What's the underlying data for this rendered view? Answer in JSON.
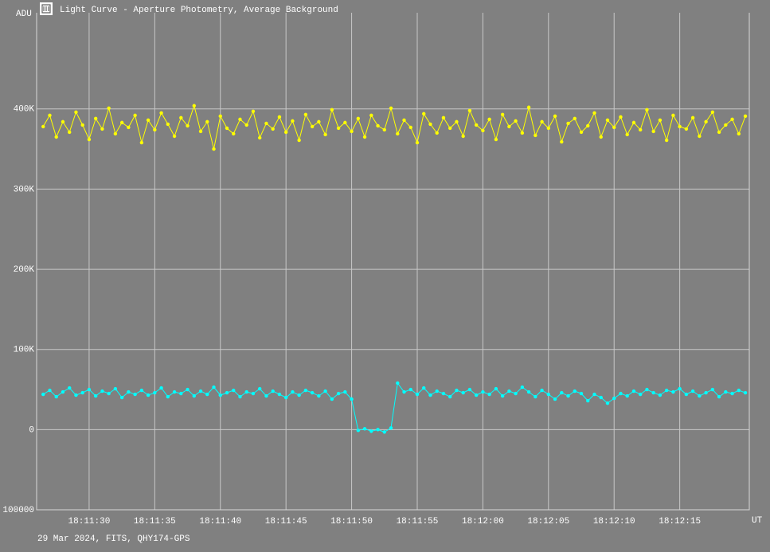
{
  "chart_data": {
    "type": "line",
    "title": "Light Curve - Aperture Photometry, Average Background",
    "ylabel": "ADU",
    "xlabel": "UT",
    "footnote": "29 Mar 2024, FITS, QHY174-GPS",
    "grid": true,
    "xlim": [
      65486,
      65540.3
    ],
    "ylim": [
      -100000,
      520000
    ],
    "xticks": [
      {
        "value": 65490,
        "label": "18:11:30"
      },
      {
        "value": 65495,
        "label": "18:11:35"
      },
      {
        "value": 65500,
        "label": "18:11:40"
      },
      {
        "value": 65505,
        "label": "18:11:45"
      },
      {
        "value": 65510,
        "label": "18:11:50"
      },
      {
        "value": 65515,
        "label": "18:11:55"
      },
      {
        "value": 65520,
        "label": "18:12:00"
      },
      {
        "value": 65525,
        "label": "18:12:05"
      },
      {
        "value": 65530,
        "label": "18:12:10"
      },
      {
        "value": 65535,
        "label": "18:12:15"
      }
    ],
    "yticks": [
      {
        "value": -100000,
        "label": "100000"
      },
      0,
      {
        "value": 100000,
        "label": "100K"
      },
      {
        "value": 200000,
        "label": "200K"
      },
      {
        "value": 300000,
        "label": "300K"
      },
      {
        "value": 400000,
        "label": "400K"
      }
    ],
    "x": [
      65486.5,
      65487,
      65487.5,
      65488,
      65488.5,
      65489,
      65489.5,
      65490,
      65490.5,
      65491,
      65491.5,
      65492,
      65492.5,
      65493,
      65493.5,
      65494,
      65494.5,
      65495,
      65495.5,
      65496,
      65496.5,
      65497,
      65497.5,
      65498,
      65498.5,
      65499,
      65499.5,
      65500,
      65500.5,
      65501,
      65501.5,
      65502,
      65502.5,
      65503,
      65503.5,
      65504,
      65504.5,
      65505,
      65505.5,
      65506,
      65506.5,
      65507,
      65507.5,
      65508,
      65508.5,
      65509,
      65509.5,
      65510,
      65510.5,
      65511,
      65511.5,
      65512,
      65512.5,
      65513,
      65513.5,
      65514,
      65514.5,
      65515,
      65515.5,
      65516,
      65516.5,
      65517,
      65517.5,
      65518,
      65518.5,
      65519,
      65519.5,
      65520,
      65520.5,
      65521,
      65521.5,
      65522,
      65522.5,
      65523,
      65523.5,
      65524,
      65524.5,
      65525,
      65525.5,
      65526,
      65526.5,
      65527,
      65527.5,
      65528,
      65528.5,
      65529,
      65529.5,
      65530,
      65530.5,
      65531,
      65531.5,
      65532,
      65532.5,
      65533,
      65533.5,
      65534,
      65534.5,
      65535,
      65535.5,
      65536,
      65536.5,
      65537,
      65537.5,
      65538,
      65538.5,
      65539,
      65539.5,
      65540
    ],
    "series": [
      {
        "color": "#ffff00",
        "values": [
          378000,
          392000,
          365000,
          384000,
          371000,
          396000,
          380000,
          362000,
          388000,
          375000,
          401000,
          369000,
          383000,
          377000,
          392000,
          358000,
          386000,
          374000,
          395000,
          381000,
          366000,
          389000,
          379000,
          404000,
          372000,
          384000,
          350000,
          391000,
          376000,
          369000,
          387000,
          380000,
          397000,
          364000,
          382000,
          375000,
          390000,
          371000,
          385000,
          361000,
          393000,
          378000,
          384000,
          368000,
          399000,
          376000,
          383000,
          372000,
          388000,
          365000,
          392000,
          379000,
          374000,
          401000,
          369000,
          386000,
          377000,
          358000,
          394000,
          381000,
          370000,
          389000,
          376000,
          384000,
          366000,
          398000,
          380000,
          373000,
          387000,
          362000,
          393000,
          378000,
          385000,
          370000,
          402000,
          367000,
          384000,
          376000,
          391000,
          359000,
          382000,
          388000,
          371000,
          379000,
          395000,
          365000,
          386000,
          377000,
          390000,
          368000,
          383000,
          374000,
          399000,
          372000,
          386000,
          361000,
          392000,
          378000,
          375000,
          389000,
          366000,
          384000,
          396000,
          371000,
          380000,
          387000,
          369000,
          391000
        ]
      },
      {
        "color": "#00ffff",
        "values": [
          44000,
          49000,
          41000,
          47000,
          52000,
          43000,
          46000,
          50000,
          42000,
          48000,
          45000,
          51000,
          40000,
          47000,
          44000,
          49000,
          43000,
          46000,
          52000,
          41000,
          47000,
          45000,
          50000,
          42000,
          48000,
          44000,
          53000,
          43000,
          46000,
          49000,
          41000,
          47000,
          45000,
          51000,
          42000,
          48000,
          44000,
          40000,
          47000,
          43000,
          49000,
          46000,
          42000,
          48000,
          38000,
          45000,
          47000,
          38000,
          -1000,
          1000,
          -2000,
          0,
          -3000,
          2000,
          58000,
          47000,
          50000,
          44000,
          52000,
          43000,
          48000,
          45000,
          41000,
          49000,
          46000,
          50000,
          43000,
          47000,
          44000,
          51000,
          42000,
          48000,
          45000,
          53000,
          47000,
          41000,
          49000,
          44000,
          38000,
          46000,
          42000,
          48000,
          45000,
          36000,
          44000,
          40000,
          33000,
          39000,
          45000,
          42000,
          48000,
          44000,
          50000,
          46000,
          43000,
          49000,
          47000,
          51000,
          44000,
          48000,
          42000,
          46000,
          50000,
          41000,
          47000,
          45000,
          49000,
          46000
        ]
      }
    ]
  }
}
